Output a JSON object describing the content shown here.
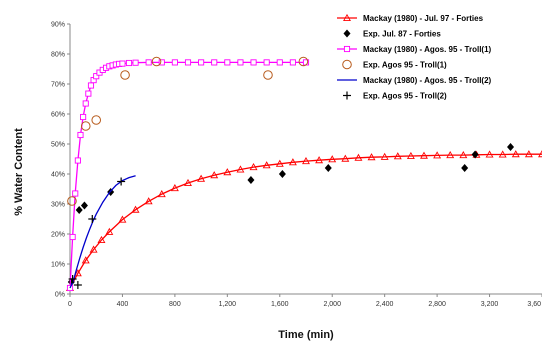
{
  "chart_data": {
    "type": "scatter",
    "title": "",
    "xlabel": "Time (min)",
    "ylabel": "% Water Content",
    "xlim": [
      0,
      3600
    ],
    "ylim": [
      0,
      90
    ],
    "x_ticks": [
      "0",
      "400",
      "800",
      "1,200",
      "1,600",
      "2,000",
      "2,400",
      "2,800",
      "3,200",
      "3,60"
    ],
    "y_ticks": [
      "0%",
      "10%",
      "20%",
      "30%",
      "40%",
      "50%",
      "60%",
      "70%",
      "80%",
      "90%"
    ],
    "grid": false,
    "legend_position": "top-right",
    "series": [
      {
        "name": "Mackay (1980) - Jul. 97 - Forties",
        "kind": "line-markers",
        "marker": "triangle",
        "color": "#ff0000",
        "x": [
          0,
          60,
          120,
          180,
          240,
          300,
          400,
          500,
          600,
          700,
          800,
          900,
          1000,
          1100,
          1200,
          1300,
          1400,
          1500,
          1600,
          1700,
          1800,
          1900,
          2000,
          2100,
          2200,
          2300,
          2400,
          2500,
          2600,
          2700,
          2800,
          2900,
          3000,
          3100,
          3200,
          3300,
          3400,
          3500,
          3600
        ],
        "y": [
          2.0,
          6.9,
          11.2,
          14.8,
          18.0,
          20.7,
          24.8,
          28.1,
          30.9,
          33.3,
          35.3,
          37.0,
          38.4,
          39.6,
          40.6,
          41.5,
          42.3,
          42.9,
          43.4,
          43.9,
          44.3,
          44.6,
          44.9,
          45.1,
          45.4,
          45.6,
          45.7,
          45.9,
          46.0,
          46.1,
          46.2,
          46.3,
          46.3,
          46.4,
          46.5,
          46.5,
          46.6,
          46.6,
          46.6
        ]
      },
      {
        "name": "Exp. Jul. 87 - Forties",
        "kind": "scatter",
        "marker": "diamond",
        "color": "#000000",
        "x": [
          10,
          70,
          110,
          310,
          1380,
          1620,
          1970,
          3010,
          3090,
          3360
        ],
        "y": [
          4,
          28,
          29.5,
          34,
          38,
          40,
          42,
          42,
          46.5,
          49
        ]
      },
      {
        "name": "Mackay (1980) - Agos. 95 - Troll(1)",
        "kind": "line-markers",
        "marker": "square",
        "color": "#ff00ff",
        "x": [
          0,
          20,
          40,
          60,
          80,
          100,
          120,
          140,
          160,
          180,
          200,
          225,
          250,
          275,
          300,
          325,
          350,
          375,
          400,
          450,
          500,
          600,
          700,
          800,
          900,
          1000,
          1100,
          1200,
          1300,
          1400,
          1500,
          1600,
          1700,
          1800
        ],
        "y": [
          2.0,
          19.0,
          33.5,
          44.5,
          53.0,
          59.0,
          63.5,
          66.8,
          69.5,
          71.3,
          72.6,
          73.8,
          74.7,
          75.4,
          75.9,
          76.2,
          76.5,
          76.7,
          76.8,
          77.0,
          77.1,
          77.2,
          77.2,
          77.2,
          77.2,
          77.2,
          77.2,
          77.2,
          77.2,
          77.2,
          77.2,
          77.2,
          77.2,
          77.2
        ]
      },
      {
        "name": "Exp. Agos 95 - Troll(1)",
        "kind": "scatter",
        "marker": "circle",
        "color": "#b85c1e",
        "x": [
          15,
          120,
          200,
          420,
          660,
          1510,
          1780
        ],
        "y": [
          31,
          56,
          58,
          73,
          77.5,
          73,
          77.5
        ]
      },
      {
        "name": "Mackay (1980) - Agos. 95 - Troll(2)",
        "kind": "line",
        "marker": "none",
        "color": "#0000cc",
        "x": [
          0,
          25,
          50,
          75,
          100,
          125,
          150,
          175,
          200,
          250,
          300,
          350,
          400,
          450,
          500
        ],
        "y": [
          2.0,
          4.3,
          8.3,
          12.0,
          15.5,
          18.7,
          21.6,
          24.2,
          26.6,
          30.6,
          33.8,
          36.2,
          37.8,
          38.8,
          39.4
        ]
      },
      {
        "name": "Exp. Agos 95 - Troll(2)",
        "kind": "scatter",
        "marker": "plus",
        "color": "#000000",
        "x": [
          20,
          60,
          170,
          390
        ],
        "y": [
          5,
          3,
          25,
          37.5
        ]
      }
    ]
  }
}
